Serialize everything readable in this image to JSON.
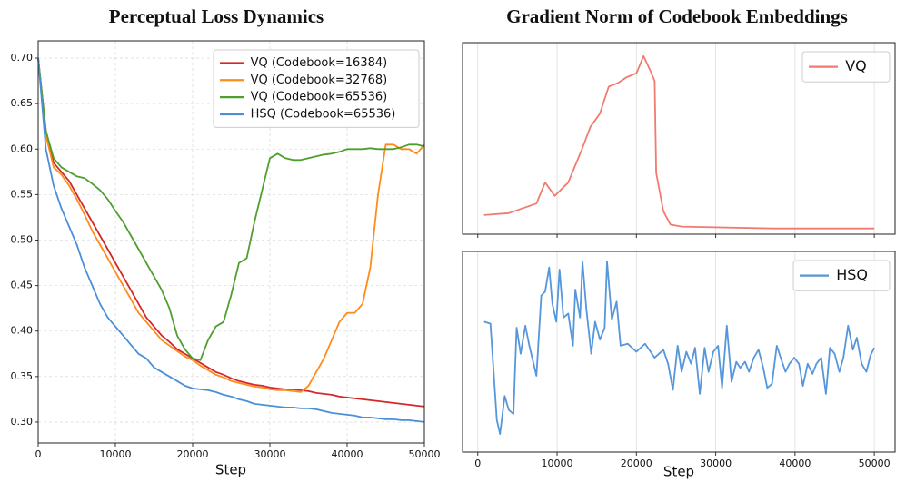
{
  "chart_data": [
    {
      "type": "line",
      "title": "Perceptual Loss Dynamics",
      "xlabel": "Step",
      "xlim": [
        0,
        50000
      ],
      "ylim": [
        0.277,
        0.719
      ],
      "xticks": [
        0,
        10000,
        20000,
        30000,
        40000,
        50000
      ],
      "yticks": [
        {
          "value": 0.3,
          "label": "0.30"
        },
        0.35,
        {
          "value": 0.4,
          "label": "0.40"
        },
        0.45,
        {
          "value": 0.5,
          "label": "0.50"
        },
        0.55,
        {
          "value": 0.6,
          "label": "0.60"
        },
        0.65,
        {
          "value": 0.7,
          "label": "0.70"
        }
      ],
      "grid": true,
      "legend": "upper right",
      "x": [
        0,
        1000,
        2000,
        3000,
        4000,
        5000,
        6000,
        7000,
        8000,
        9000,
        10000,
        11000,
        12000,
        13000,
        14000,
        15000,
        16000,
        17000,
        18000,
        19000,
        20000,
        21000,
        22000,
        23000,
        24000,
        25000,
        26000,
        27000,
        28000,
        29000,
        30000,
        31000,
        32000,
        33000,
        34000,
        35000,
        36000,
        37000,
        38000,
        39000,
        40000,
        41000,
        42000,
        43000,
        44000,
        45000,
        46000,
        47000,
        48000,
        49000,
        50000
      ],
      "series": [
        {
          "name": "VQ (Codebook=16384)",
          "color": "#d62728",
          "values": [
            0.7,
            0.62,
            0.585,
            0.575,
            0.565,
            0.55,
            0.535,
            0.52,
            0.505,
            0.49,
            0.475,
            0.46,
            0.445,
            0.43,
            0.415,
            0.405,
            0.395,
            0.388,
            0.38,
            0.375,
            0.37,
            0.365,
            0.36,
            0.355,
            0.352,
            0.348,
            0.345,
            0.343,
            0.341,
            0.34,
            0.338,
            0.337,
            0.336,
            0.336,
            0.335,
            0.334,
            0.332,
            0.331,
            0.33,
            0.328,
            0.327,
            0.326,
            0.325,
            0.324,
            0.323,
            0.322,
            0.321,
            0.32,
            0.319,
            0.318,
            0.317
          ]
        },
        {
          "name": "VQ (Codebook=32768)",
          "color": "#ff8c1a",
          "values": [
            0.7,
            0.615,
            0.58,
            0.572,
            0.56,
            0.545,
            0.528,
            0.51,
            0.495,
            0.48,
            0.465,
            0.45,
            0.435,
            0.42,
            0.41,
            0.4,
            0.39,
            0.384,
            0.378,
            0.372,
            0.368,
            0.362,
            0.357,
            0.352,
            0.349,
            0.345,
            0.343,
            0.341,
            0.339,
            0.338,
            0.336,
            0.335,
            0.335,
            0.334,
            0.333,
            0.34,
            0.355,
            0.37,
            0.39,
            0.41,
            0.42,
            0.42,
            0.43,
            0.47,
            0.55,
            0.605,
            0.605,
            0.6,
            0.6,
            0.595,
            0.605
          ]
        },
        {
          "name": "VQ (Codebook=65536)",
          "color": "#4f9e2e",
          "values": [
            0.7,
            0.62,
            0.59,
            0.58,
            0.575,
            0.57,
            0.568,
            0.562,
            0.555,
            0.545,
            0.532,
            0.52,
            0.505,
            0.49,
            0.475,
            0.46,
            0.445,
            0.425,
            0.395,
            0.38,
            0.37,
            0.368,
            0.39,
            0.405,
            0.41,
            0.44,
            0.475,
            0.48,
            0.52,
            0.555,
            0.59,
            0.595,
            0.59,
            0.588,
            0.588,
            0.59,
            0.592,
            0.594,
            0.595,
            0.597,
            0.6,
            0.6,
            0.6,
            0.601,
            0.6,
            0.6,
            0.6,
            0.602,
            0.605,
            0.605,
            0.603
          ]
        },
        {
          "name": "HSQ (Codebook=65536)",
          "color": "#4a90d9",
          "values": [
            0.7,
            0.6,
            0.56,
            0.535,
            0.515,
            0.495,
            0.47,
            0.45,
            0.43,
            0.415,
            0.405,
            0.395,
            0.385,
            0.375,
            0.37,
            0.36,
            0.355,
            0.35,
            0.345,
            0.34,
            0.337,
            0.336,
            0.335,
            0.333,
            0.33,
            0.328,
            0.325,
            0.323,
            0.32,
            0.319,
            0.318,
            0.317,
            0.316,
            0.316,
            0.315,
            0.315,
            0.314,
            0.312,
            0.31,
            0.309,
            0.308,
            0.307,
            0.305,
            0.305,
            0.304,
            0.303,
            0.303,
            0.302,
            0.302,
            0.301,
            0.3
          ]
        }
      ]
    },
    {
      "type": "line",
      "title": "Gradient Norm of Codebook Embeddings",
      "xlim": [
        -1920,
        52620
      ],
      "ylim": [
        0,
        1
      ],
      "legend": "upper right",
      "x": [
        800,
        3900,
        7400,
        8500,
        9700,
        11400,
        13100,
        14200,
        15400,
        16500,
        17700,
        18800,
        20000,
        20900,
        21800,
        22300,
        22500,
        23400,
        24300,
        25700,
        37200,
        50000
      ],
      "series": [
        {
          "name": "VQ",
          "color": "#f07b6f",
          "values": [
            0.1,
            0.11,
            0.16,
            0.27,
            0.2,
            0.27,
            0.44,
            0.56,
            0.63,
            0.77,
            0.79,
            0.82,
            0.84,
            0.93,
            0.85,
            0.8,
            0.32,
            0.12,
            0.05,
            0.04,
            0.03,
            0.03
          ]
        }
      ]
    },
    {
      "type": "line",
      "xlabel": "Step",
      "xlim": [
        -1920,
        52620
      ],
      "ylim": [
        0,
        1
      ],
      "legend": "upper right",
      "xticks": [
        0,
        10000,
        20000,
        30000,
        40000,
        50000
      ],
      "x": [
        800,
        1600,
        2400,
        2800,
        3400,
        3900,
        4500,
        4900,
        5400,
        6000,
        6500,
        7400,
        8000,
        8500,
        9000,
        9400,
        9900,
        10300,
        10800,
        11400,
        12000,
        12300,
        12900,
        13200,
        13700,
        14300,
        14800,
        15400,
        16000,
        16300,
        16900,
        17500,
        18000,
        18900,
        20000,
        21100,
        22300,
        23400,
        24000,
        24600,
        25200,
        25700,
        26300,
        26900,
        27400,
        28000,
        28600,
        29100,
        29700,
        30300,
        30800,
        31400,
        32000,
        32600,
        33100,
        33700,
        34200,
        34800,
        35400,
        36000,
        36500,
        37100,
        37700,
        38200,
        38800,
        39300,
        39900,
        40500,
        41000,
        41600,
        42200,
        42700,
        43300,
        43900,
        44400,
        45000,
        45600,
        46100,
        46700,
        47300,
        47800,
        48400,
        49000,
        49500,
        50000
      ],
      "series": [
        {
          "name": "HSQ",
          "color": "#5596dc",
          "values": [
            0.65,
            0.64,
            0.16,
            0.09,
            0.28,
            0.21,
            0.19,
            0.62,
            0.49,
            0.63,
            0.53,
            0.38,
            0.78,
            0.8,
            0.92,
            0.74,
            0.65,
            0.91,
            0.67,
            0.69,
            0.53,
            0.81,
            0.67,
            0.95,
            0.71,
            0.49,
            0.65,
            0.56,
            0.62,
            0.95,
            0.66,
            0.75,
            0.53,
            0.54,
            0.5,
            0.54,
            0.47,
            0.51,
            0.44,
            0.31,
            0.53,
            0.4,
            0.5,
            0.44,
            0.52,
            0.29,
            0.52,
            0.4,
            0.5,
            0.53,
            0.32,
            0.63,
            0.35,
            0.45,
            0.42,
            0.45,
            0.4,
            0.47,
            0.51,
            0.42,
            0.32,
            0.34,
            0.53,
            0.47,
            0.4,
            0.44,
            0.47,
            0.44,
            0.33,
            0.44,
            0.39,
            0.44,
            0.47,
            0.29,
            0.52,
            0.49,
            0.4,
            0.47,
            0.63,
            0.51,
            0.57,
            0.44,
            0.4,
            0.48,
            0.52
          ]
        }
      ]
    }
  ]
}
